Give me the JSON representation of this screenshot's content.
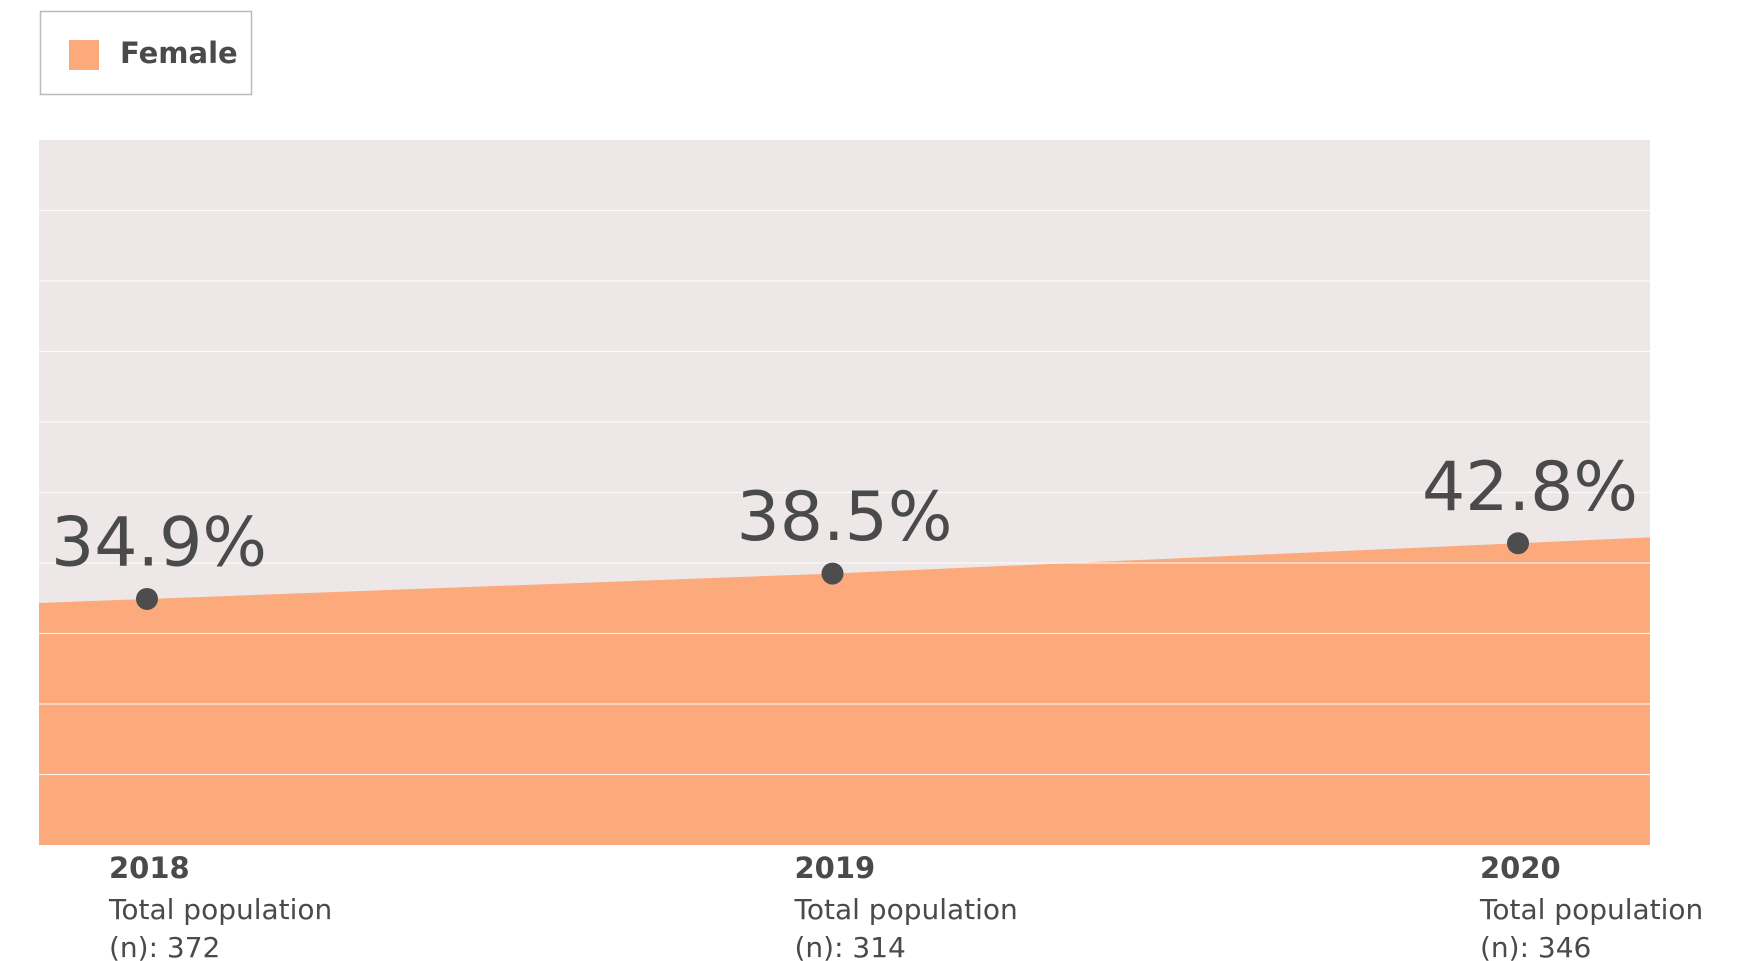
{
  "chart_data": {
    "type": "area",
    "categories": [
      "2018",
      "2019",
      "2020"
    ],
    "category_notes": [
      "Total population (n): 372",
      "Total population (n): 314",
      "Total population (n): 346"
    ],
    "series": [
      {
        "name": "Female",
        "color": "#fca97c",
        "values": [
          34.9,
          38.5,
          42.8
        ],
        "value_labels": [
          "34.9%",
          "38.5%",
          "42.8%"
        ]
      }
    ],
    "ylim": [
      0,
      100
    ],
    "yticks": [
      0,
      10,
      20,
      30,
      40,
      50,
      60,
      70,
      80,
      90,
      100
    ],
    "grid": true,
    "plot_background": "#ede7e7",
    "legend": "top-left"
  }
}
